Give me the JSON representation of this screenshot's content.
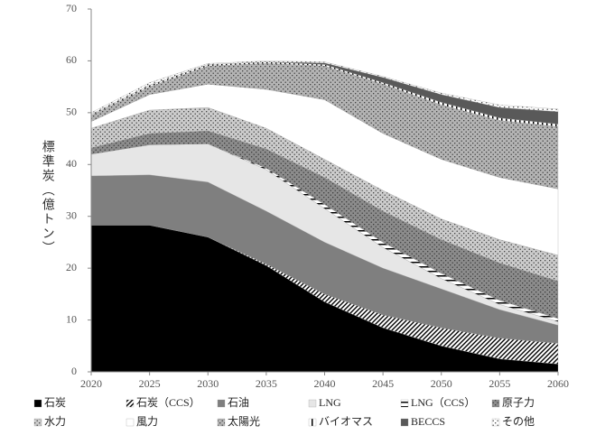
{
  "chart_data": {
    "type": "stacked_area",
    "y_label": "標準炭（億トン）",
    "x": [
      2020,
      2025,
      2030,
      2035,
      2040,
      2045,
      2050,
      2055,
      2060
    ],
    "xlim": [
      2020,
      2060
    ],
    "xticks": [
      2020,
      2025,
      2030,
      2035,
      2040,
      2045,
      2050,
      2055,
      2060
    ],
    "ylim": [
      0,
      70
    ],
    "yticks": [
      0,
      10,
      20,
      30,
      40,
      50,
      60,
      70
    ],
    "series": [
      {
        "name": "石炭",
        "color": "#000000",
        "pattern": "solid",
        "values": [
          28.3,
          28.3,
          26,
          20.5,
          13.5,
          8.5,
          5,
          2.5,
          1.5
        ]
      },
      {
        "name": "石炭（CCS）",
        "color": "#ffffff",
        "pattern": "diagonal",
        "values": [
          0,
          0,
          0,
          0.3,
          1.5,
          2.5,
          3.5,
          4,
          4
        ]
      },
      {
        "name": "石油",
        "color": "#7f7f7f",
        "pattern": "solid",
        "values": [
          9.5,
          9.7,
          10.6,
          10.2,
          10,
          9,
          7.5,
          5.5,
          3.5
        ]
      },
      {
        "name": "LNG",
        "color": "#e6e6e6",
        "pattern": "solid",
        "values": [
          4.2,
          5.8,
          7.4,
          8,
          6.5,
          4,
          2,
          1,
          0.7
        ]
      },
      {
        "name": "LNG（CCS）",
        "color": "#ffffff",
        "pattern": "horizontal",
        "values": [
          0,
          0,
          0,
          0.3,
          0.8,
          1,
          1,
          0.8,
          0.6
        ]
      },
      {
        "name": "原子力",
        "color": "#8c8c8c",
        "pattern": "dots",
        "values": [
          1.2,
          2.2,
          2.5,
          3.7,
          5.2,
          6,
          6.5,
          7.2,
          7.2
        ]
      },
      {
        "name": "水力",
        "color": "#cccccc",
        "pattern": "dots",
        "values": [
          3.8,
          4.5,
          4.5,
          4,
          3.5,
          4,
          4,
          4.5,
          5
        ]
      },
      {
        "name": "風力",
        "color": "#ffffff",
        "pattern": "solid",
        "values": [
          1.3,
          3,
          4.5,
          7.5,
          11.5,
          11,
          11.5,
          12,
          12.8
        ]
      },
      {
        "name": "太陽光",
        "color": "#b4b4b4",
        "pattern": "dots",
        "values": [
          1.2,
          1.5,
          3.5,
          5,
          6.5,
          9.5,
          10.5,
          11,
          12
        ]
      },
      {
        "name": "バイオマス",
        "color": "#ffffff",
        "pattern": "vertical",
        "values": [
          0.2,
          0.3,
          0.3,
          0.3,
          0.3,
          0.3,
          0.5,
          0.5,
          0.5
        ]
      },
      {
        "name": "BECCS",
        "color": "#595959",
        "pattern": "solid",
        "values": [
          0,
          0,
          0,
          0,
          0.3,
          1,
          1.5,
          2,
          2.4
        ]
      },
      {
        "name": "その他",
        "color": "#ffffff",
        "pattern": "dots",
        "values": [
          0.3,
          0.5,
          0.2,
          0.2,
          0.2,
          0.2,
          0.3,
          0.5,
          0.5
        ]
      }
    ]
  }
}
